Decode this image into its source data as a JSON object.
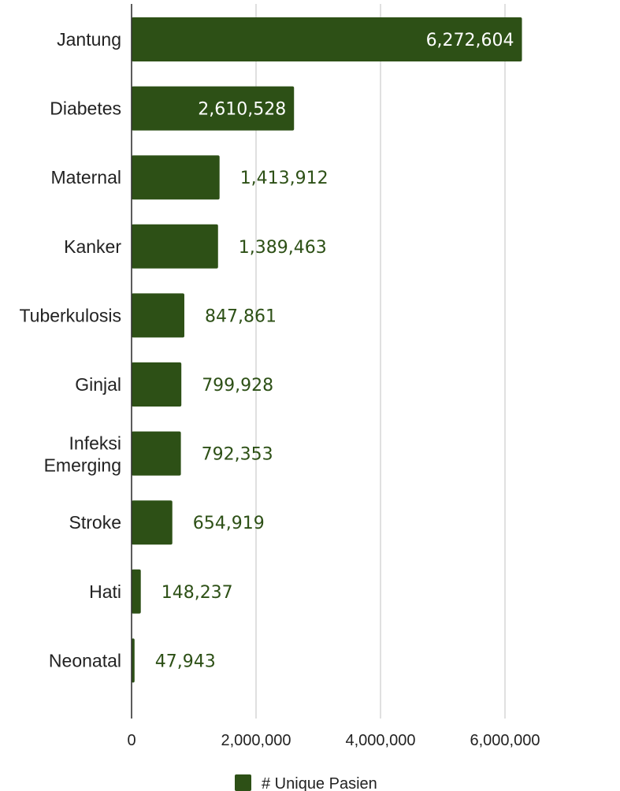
{
  "chart_data": {
    "type": "bar",
    "orientation": "horizontal",
    "categories": [
      "Jantung",
      "Diabetes",
      "Maternal",
      "Kanker",
      "Tuberkulosis",
      "Ginjal",
      "Infeksi Emerging",
      "Stroke",
      "Hati",
      "Neonatal"
    ],
    "series": [
      {
        "name": "# Unique Pasien",
        "values": [
          6272604,
          2610528,
          1413912,
          1389463,
          847861,
          799928,
          792353,
          654919,
          148237,
          47943
        ],
        "data_labels": [
          "6,272,604",
          "2,610,528",
          "1,413,912",
          "1,389,463",
          "847,861",
          "799,928",
          "792,353",
          "654,919",
          "148,237",
          "47,943"
        ],
        "color": "#2d5016"
      }
    ],
    "title": "",
    "xlabel": "",
    "ylabel": "",
    "xlim": [
      0,
      7500000
    ],
    "x_ticks": [
      0,
      2000000,
      4000000,
      6000000
    ],
    "x_tick_labels": [
      "0",
      "2,000,000",
      "4,000,000",
      "6,000,000"
    ],
    "grid": true,
    "legend": {
      "position": "bottom",
      "entries": [
        "# Unique Pasien"
      ]
    }
  },
  "colors": {
    "bar": "#2d5016",
    "label_inside": "#ffffff",
    "label_outside": "#2d5016",
    "grid": "#cccccc",
    "axis": "#333333"
  }
}
